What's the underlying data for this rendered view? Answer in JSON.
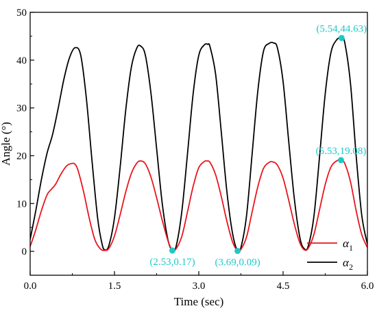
{
  "chart_data": {
    "type": "line",
    "xlabel": "Time (sec)",
    "ylabel": "Angle (°)",
    "xlim": [
      0,
      6
    ],
    "ylim": [
      -5,
      50
    ],
    "xticks": [
      0,
      1.5,
      3,
      4.5,
      6
    ],
    "xtick_labels": [
      "0.0",
      "1.5",
      "3.0",
      "4.5",
      "6.0"
    ],
    "yticks": [
      0,
      10,
      20,
      30,
      40,
      50
    ],
    "ytick_labels": [
      "0",
      "10",
      "20",
      "30",
      "40",
      "50"
    ],
    "grid": false,
    "legend_position": "bottom-right",
    "series": [
      {
        "name": "α1",
        "name_base": "α",
        "name_sub": "1",
        "color": "#e8141c",
        "x": [
          0.0,
          0.1,
          0.2,
          0.3,
          0.37,
          0.45,
          0.55,
          0.65,
          0.75,
          0.8,
          0.85,
          0.95,
          1.05,
          1.15,
          1.25,
          1.33,
          1.4,
          1.5,
          1.6,
          1.7,
          1.8,
          1.9,
          1.97,
          2.05,
          2.15,
          2.25,
          2.35,
          2.45,
          2.53,
          2.6,
          2.7,
          2.8,
          2.9,
          3.0,
          3.1,
          3.14,
          3.2,
          3.3,
          3.4,
          3.5,
          3.6,
          3.69,
          3.75,
          3.85,
          3.95,
          4.05,
          4.15,
          4.25,
          4.32,
          4.4,
          4.5,
          4.6,
          4.7,
          4.8,
          4.88,
          4.95,
          5.05,
          5.15,
          5.25,
          5.35,
          5.45,
          5.53,
          5.6,
          5.7,
          5.8,
          5.9,
          6.0
        ],
        "y": [
          1.0,
          4.5,
          8.5,
          11.8,
          12.9,
          14.0,
          16.2,
          17.9,
          18.4,
          18.2,
          17.0,
          12.5,
          7.0,
          2.5,
          0.5,
          0.2,
          0.6,
          3.2,
          7.6,
          12.4,
          16.3,
          18.5,
          18.9,
          18.3,
          15.5,
          11.2,
          6.5,
          2.3,
          0.17,
          0.6,
          3.2,
          8.3,
          13.6,
          17.5,
          18.8,
          18.9,
          18.6,
          16.0,
          11.5,
          6.3,
          2.0,
          0.09,
          0.4,
          3.0,
          8.3,
          13.5,
          17.3,
          18.6,
          18.7,
          18.0,
          15.3,
          10.7,
          5.7,
          1.7,
          0.3,
          0.7,
          3.6,
          8.8,
          14.0,
          17.6,
          18.9,
          19.08,
          18.3,
          14.5,
          8.5,
          3.5,
          0.8
        ]
      },
      {
        "name": "α2",
        "name_base": "α",
        "name_sub": "2",
        "color": "#000000",
        "x": [
          0.0,
          0.1,
          0.2,
          0.3,
          0.4,
          0.5,
          0.6,
          0.7,
          0.8,
          0.9,
          1.0,
          1.1,
          1.2,
          1.28,
          1.33,
          1.4,
          1.5,
          1.6,
          1.7,
          1.8,
          1.9,
          1.97,
          2.05,
          2.15,
          2.25,
          2.35,
          2.45,
          2.53,
          2.6,
          2.7,
          2.8,
          2.9,
          3.0,
          3.1,
          3.16,
          3.2,
          3.3,
          3.4,
          3.5,
          3.6,
          3.69,
          3.75,
          3.85,
          3.95,
          4.05,
          4.15,
          4.25,
          4.33,
          4.4,
          4.5,
          4.6,
          4.7,
          4.8,
          4.88,
          4.95,
          5.05,
          5.15,
          5.25,
          5.35,
          5.45,
          5.54,
          5.6,
          5.7,
          5.8,
          5.9,
          6.0
        ],
        "y": [
          2.5,
          8.5,
          15.0,
          20.5,
          24.5,
          30.0,
          36.0,
          40.5,
          42.6,
          41.0,
          32.0,
          19.0,
          7.0,
          1.5,
          0.3,
          1.2,
          7.0,
          17.5,
          29.5,
          38.5,
          42.6,
          42.9,
          41.0,
          33.0,
          21.5,
          10.0,
          2.5,
          0.17,
          1.2,
          8.5,
          20.5,
          33.0,
          41.0,
          43.2,
          43.3,
          42.8,
          37.0,
          25.0,
          12.5,
          3.8,
          0.09,
          0.8,
          7.5,
          20.5,
          33.5,
          41.8,
          43.5,
          43.6,
          42.5,
          35.5,
          23.0,
          11.0,
          2.8,
          0.5,
          1.2,
          7.5,
          20.0,
          33.0,
          41.5,
          44.2,
          44.63,
          43.5,
          35.0,
          20.0,
          7.5,
          1.5
        ]
      }
    ],
    "markers": [
      {
        "x": 5.54,
        "y": 44.63,
        "label": "(5.54,44.63)",
        "anchor": "above"
      },
      {
        "x": 5.53,
        "y": 19.08,
        "label": "(5.53,19.08)",
        "anchor": "above"
      },
      {
        "x": 2.53,
        "y": 0.17,
        "label": "(2.53,0.17)",
        "anchor": "below"
      },
      {
        "x": 3.69,
        "y": 0.09,
        "label": "(3.69,0.09)",
        "anchor": "below"
      }
    ],
    "marker_color": "#1ec8c8"
  }
}
